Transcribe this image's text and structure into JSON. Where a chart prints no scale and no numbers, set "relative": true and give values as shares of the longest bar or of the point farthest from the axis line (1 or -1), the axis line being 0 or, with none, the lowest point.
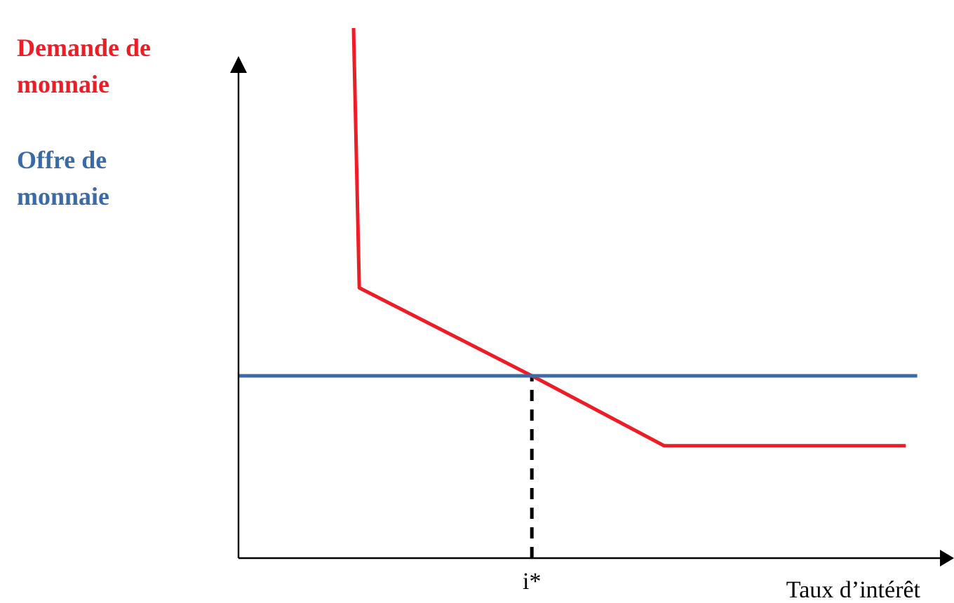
{
  "chart_data": {
    "type": "line",
    "relative": true,
    "xlabel": "Taux d’intérêt",
    "marker": "none",
    "categories": [
      null,
      null,
      null,
      null,
      null,
      null,
      null,
      null,
      null,
      null,
      null,
      null,
      null,
      null,
      null,
      null,
      null,
      null,
      null,
      null,
      null,
      null,
      null,
      null,
      null,
      null,
      null,
      null,
      null,
      null,
      null,
      null,
      null,
      null,
      null,
      null,
      null,
      null,
      null,
      null,
      null,
      null,
      null,
      null,
      null,
      null,
      null,
      null,
      null,
      null,
      null,
      null,
      null,
      null,
      null,
      null,
      null,
      null,
      null,
      null,
      null,
      null,
      null,
      null,
      null,
      null,
      null,
      null,
      null,
      null,
      null,
      null,
      null,
      null,
      null,
      null,
      null,
      null,
      null,
      null,
      null,
      null,
      null,
      null,
      null,
      null,
      null,
      null,
      null,
      null,
      null,
      null,
      null,
      null,
      null,
      null,
      null,
      null,
      null,
      null,
      null,
      null,
      null,
      null,
      null,
      null,
      null,
      null,
      null,
      null,
      null,
      null,
      null,
      null,
      null,
      null,
      null,
      null,
      null,
      null,
      null
    ],
    "series": [
      {
        "name": "Demande de monnaie",
        "color": "#ee1c25",
        "values": [
          null,
          null,
          null,
          null,
          null,
          null,
          null,
          null,
          null,
          null,
          null,
          null,
          null,
          null,
          null,
          null,
          null,
          null,
          null,
          null,
          1,
          0.51,
          null,
          null,
          null,
          null,
          null,
          null,
          null,
          null,
          null,
          null,
          null,
          null,
          null,
          null,
          null,
          null,
          null,
          null,
          null,
          null,
          null,
          null,
          null,
          null,
          null,
          null,
          null,
          null,
          null,
          0.344,
          null,
          null,
          null,
          null,
          null,
          null,
          null,
          null,
          null,
          null,
          null,
          null,
          null,
          null,
          null,
          null,
          null,
          null,
          null,
          null,
          null,
          null,
          0.212,
          null,
          null,
          null,
          null,
          null,
          null,
          null,
          null,
          null,
          null,
          null,
          null,
          null,
          null,
          null,
          null,
          null,
          null,
          null,
          null,
          null,
          null,
          null,
          null,
          null,
          null,
          null,
          null,
          null,
          null,
          null,
          null,
          null,
          null,
          null,
          null,
          null,
          null,
          null,
          null,
          null,
          0.212,
          null,
          null,
          null,
          null
        ]
      },
      {
        "name": "Offre de monnaie",
        "color": "#3a6aa8",
        "values": [
          0.344,
          null,
          null,
          null,
          null,
          null,
          null,
          null,
          null,
          null,
          null,
          null,
          null,
          null,
          null,
          null,
          null,
          null,
          null,
          null,
          null,
          null,
          null,
          null,
          null,
          null,
          null,
          null,
          null,
          null,
          null,
          null,
          null,
          null,
          null,
          null,
          null,
          null,
          null,
          null,
          null,
          null,
          null,
          null,
          null,
          null,
          null,
          null,
          null,
          null,
          null,
          null,
          null,
          null,
          null,
          null,
          null,
          null,
          null,
          null,
          null,
          null,
          null,
          null,
          null,
          null,
          null,
          null,
          null,
          null,
          null,
          null,
          null,
          null,
          null,
          null,
          null,
          null,
          null,
          null,
          null,
          null,
          null,
          null,
          null,
          null,
          null,
          null,
          null,
          null,
          null,
          null,
          null,
          null,
          null,
          null,
          null,
          null,
          null,
          null,
          null,
          null,
          null,
          null,
          null,
          null,
          null,
          null,
          null,
          null,
          null,
          null,
          null,
          null,
          null,
          null,
          null,
          null,
          0.344,
          null,
          null
        ]
      }
    ],
    "annotations": [
      "i*"
    ]
  }
}
